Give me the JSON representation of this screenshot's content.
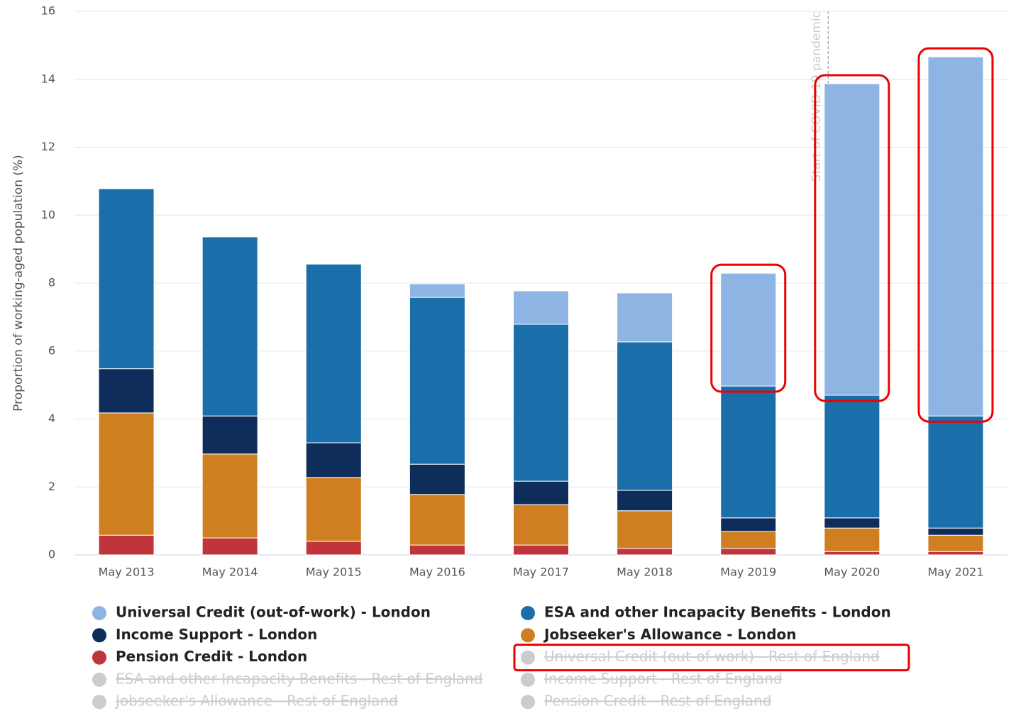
{
  "chart_data": {
    "type": "stacked_bar",
    "y_label": "Proportion of working-aged population (%)",
    "categories": [
      "May 2013",
      "May 2014",
      "May 2015",
      "May 2016",
      "May 2017",
      "May 2018",
      "May 2019",
      "May 2020",
      "May 2021"
    ],
    "series": [
      {
        "name": "Universal Credit (out-of-work) - London",
        "color": "#8eb4e3",
        "values": [
          0,
          0,
          0,
          0.4,
          0.98,
          1.44,
          3.32,
          9.17,
          10.57
        ]
      },
      {
        "name": "ESA and other Incapacity Benefits - London",
        "color": "#1a6faa",
        "values": [
          5.3,
          5.27,
          5.26,
          4.91,
          4.62,
          4.37,
          3.88,
          3.61,
          3.3
        ]
      },
      {
        "name": "Income Support - London",
        "color": "#0e2d5a",
        "values": [
          1.3,
          1.12,
          1.02,
          0.89,
          0.69,
          0.6,
          0.4,
          0.3,
          0.21
        ]
      },
      {
        "name": "Jobseeker's Allowance - London",
        "color": "#cf7f22",
        "values": [
          3.6,
          2.47,
          1.88,
          1.49,
          1.19,
          1.11,
          0.5,
          0.69,
          0.48
        ]
      },
      {
        "name": "Pension Credit - London",
        "color": "#c0343c",
        "values": [
          0.58,
          0.5,
          0.4,
          0.29,
          0.29,
          0.19,
          0.19,
          0.1,
          0.1
        ]
      }
    ],
    "inactive_legend": [
      "Universal Credit (out-of-work) - Rest of England",
      "ESA and other Incapacity Benefits - Rest of England",
      "Income Support - Rest of England",
      "Jobseeker's Allowance - Rest of England",
      "Pension Credit - Rest of England"
    ],
    "inactive_color": "#cccccc",
    "annotation": "Start of COVID-19 pandemic",
    "ylim": [
      0,
      16
    ],
    "yticks": [
      0,
      2,
      4,
      6,
      8,
      10,
      12,
      14,
      16
    ],
    "grid": true
  }
}
